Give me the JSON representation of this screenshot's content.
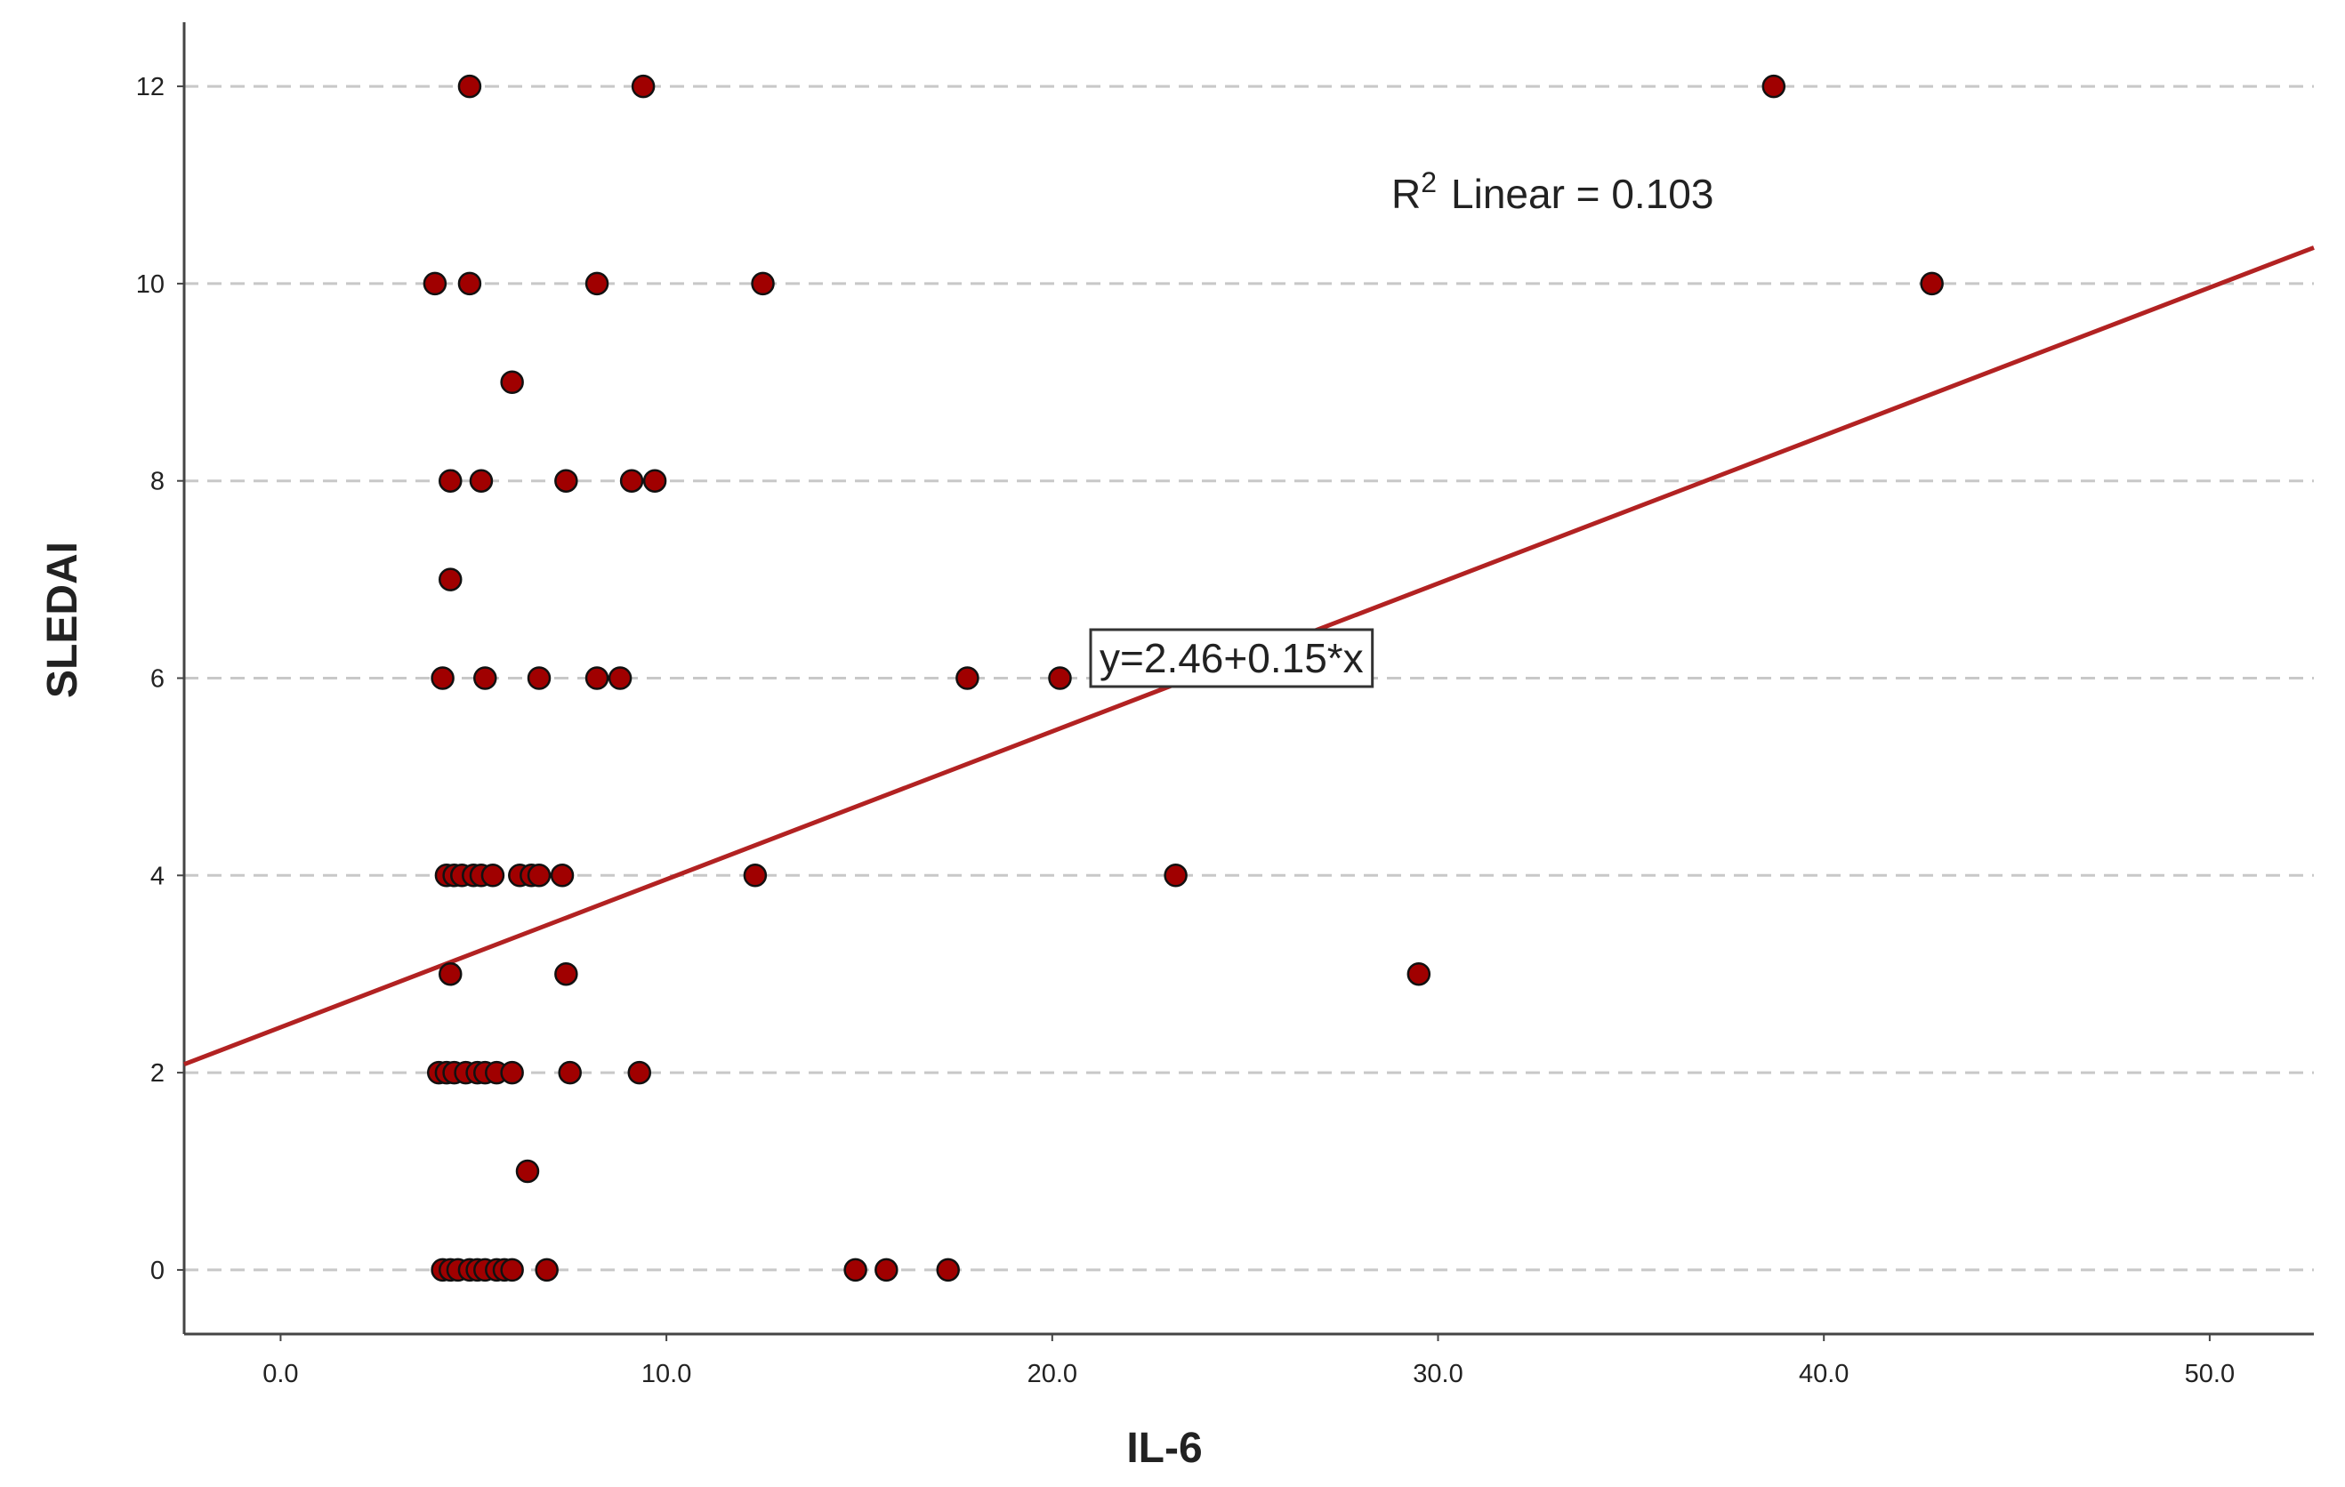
{
  "chart_data": {
    "type": "scatter",
    "x_label": "IL-6",
    "y_label": "SLEDAI",
    "x": [
      4.9,
      9.4,
      38.7,
      4.0,
      4.9,
      8.2,
      12.5,
      42.8,
      6.0,
      4.4,
      5.2,
      7.4,
      9.1,
      9.7,
      4.4,
      4.2,
      5.3,
      6.7,
      8.2,
      8.8,
      17.8,
      20.2,
      4.3,
      4.5,
      4.7,
      5.0,
      5.2,
      5.5,
      6.2,
      6.5,
      6.7,
      7.3,
      12.3,
      23.2,
      4.4,
      7.4,
      29.5,
      4.1,
      4.3,
      4.5,
      4.8,
      5.1,
      5.3,
      5.6,
      6.0,
      7.5,
      9.3,
      6.4,
      4.2,
      4.4,
      4.6,
      4.9,
      5.1,
      5.3,
      5.6,
      5.8,
      6.0,
      6.9,
      14.9,
      15.7,
      17.3
    ],
    "values": [
      12,
      12,
      12,
      10,
      10,
      10,
      10,
      10,
      9,
      8,
      8,
      8,
      8,
      8,
      7,
      6,
      6,
      6,
      6,
      6,
      6,
      6,
      4,
      4,
      4,
      4,
      4,
      4,
      4,
      4,
      4,
      4,
      4,
      4,
      3,
      3,
      3,
      2,
      2,
      2,
      2,
      2,
      2,
      2,
      2,
      2,
      2,
      1,
      0,
      0,
      0,
      0,
      0,
      0,
      0,
      0,
      0,
      0,
      0,
      0,
      0
    ],
    "color": "#a00000",
    "xlim": [
      -2.5,
      52.7
    ],
    "ylim": [
      -0.65,
      12.65
    ],
    "xticks": [
      {
        "value": 0,
        "label": "0.0"
      },
      {
        "value": 10,
        "label": "10.0"
      },
      {
        "value": 20,
        "label": "20.0"
      },
      {
        "value": 30,
        "label": "30.0"
      },
      {
        "value": 40,
        "label": "40.0"
      },
      {
        "value": 50,
        "label": "50.0"
      }
    ],
    "yticks": [
      0,
      2,
      4,
      6,
      8,
      10,
      12
    ],
    "grid": true,
    "fit_line": {
      "intercept": 2.46,
      "slope": 0.15,
      "color": "#b22222",
      "equation": "y=2.46+0.15*x"
    },
    "r2_label": {
      "prefix": "R",
      "superscript": "2",
      "text": "Linear = 0.103"
    }
  }
}
